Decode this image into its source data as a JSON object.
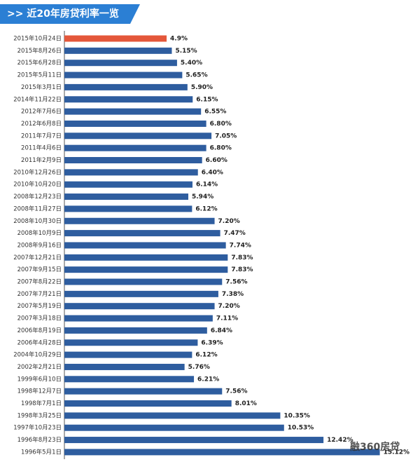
{
  "chart_data": {
    "type": "hbar",
    "title": ">> 近20年房贷利率一览",
    "watermark": "融360房贷",
    "categories": [
      "2015年10月24日",
      "2015年8月26日",
      "2015年6月28日",
      "2015年5月11日",
      "2015年3月1日",
      "2014年11月22日",
      "2012年7月6日",
      "2012年6月8日",
      "2011年7月7日",
      "2011年4月6日",
      "2011年2月9日",
      "2010年12月26日",
      "2010年10月20日",
      "2008年12月23日",
      "2008年11月27日",
      "2008年10月30日",
      "2008年10月9日",
      "2008年9月16日",
      "2007年12月21日",
      "2007年9月15日",
      "2007年8月22日",
      "2007年7月21日",
      "2007年5月19日",
      "2007年3月18日",
      "2006年8月19日",
      "2006年4月28日",
      "2004年10月29日",
      "2002年2月21日",
      "1999年6月10日",
      "1998年12月7日",
      "1998年7月1日",
      "1998年3月25日",
      "1997年10月23日",
      "1996年8月23日",
      "1996年5月1日"
    ],
    "values": [
      4.9,
      5.15,
      5.4,
      5.65,
      5.9,
      6.15,
      6.55,
      6.8,
      7.05,
      6.8,
      6.6,
      6.4,
      6.14,
      5.94,
      6.12,
      7.2,
      7.47,
      7.74,
      7.83,
      7.83,
      7.56,
      7.38,
      7.2,
      7.11,
      6.84,
      6.39,
      6.12,
      5.76,
      6.21,
      7.56,
      8.01,
      10.35,
      10.53,
      12.42,
      15.12
    ],
    "value_labels": [
      "4.9%",
      "5.15%",
      "5.40%",
      "5.65%",
      "5.90%",
      "6.15%",
      "6.55%",
      "6.80%",
      "7.05%",
      "6.80%",
      "6.60%",
      "6.40%",
      "6.14%",
      "5.94%",
      "6.12%",
      "7.20%",
      "7.47%",
      "7.74%",
      "7.83%",
      "7.83%",
      "7.56%",
      "7.38%",
      "7.20%",
      "7.11%",
      "6.84%",
      "6.39%",
      "6.12%",
      "5.76%",
      "6.21%",
      "7.56%",
      "8.01%",
      "10.35%",
      "10.53%",
      "12.42%",
      "15.12%"
    ],
    "colors": [
      "#e4573a",
      "#2e5d9f",
      "#2e5d9f",
      "#2e5d9f",
      "#2e5d9f",
      "#2e5d9f",
      "#2e5d9f",
      "#2e5d9f",
      "#2e5d9f",
      "#2e5d9f",
      "#2e5d9f",
      "#2e5d9f",
      "#2e5d9f",
      "#2e5d9f",
      "#2e5d9f",
      "#2e5d9f",
      "#2e5d9f",
      "#2e5d9f",
      "#2e5d9f",
      "#2e5d9f",
      "#2e5d9f",
      "#2e5d9f",
      "#2e5d9f",
      "#2e5d9f",
      "#2e5d9f",
      "#2e5d9f",
      "#2e5d9f",
      "#2e5d9f",
      "#2e5d9f",
      "#2e5d9f",
      "#2e5d9f",
      "#2e5d9f",
      "#2e5d9f",
      "#2e5d9f",
      "#2e5d9f"
    ]
  }
}
